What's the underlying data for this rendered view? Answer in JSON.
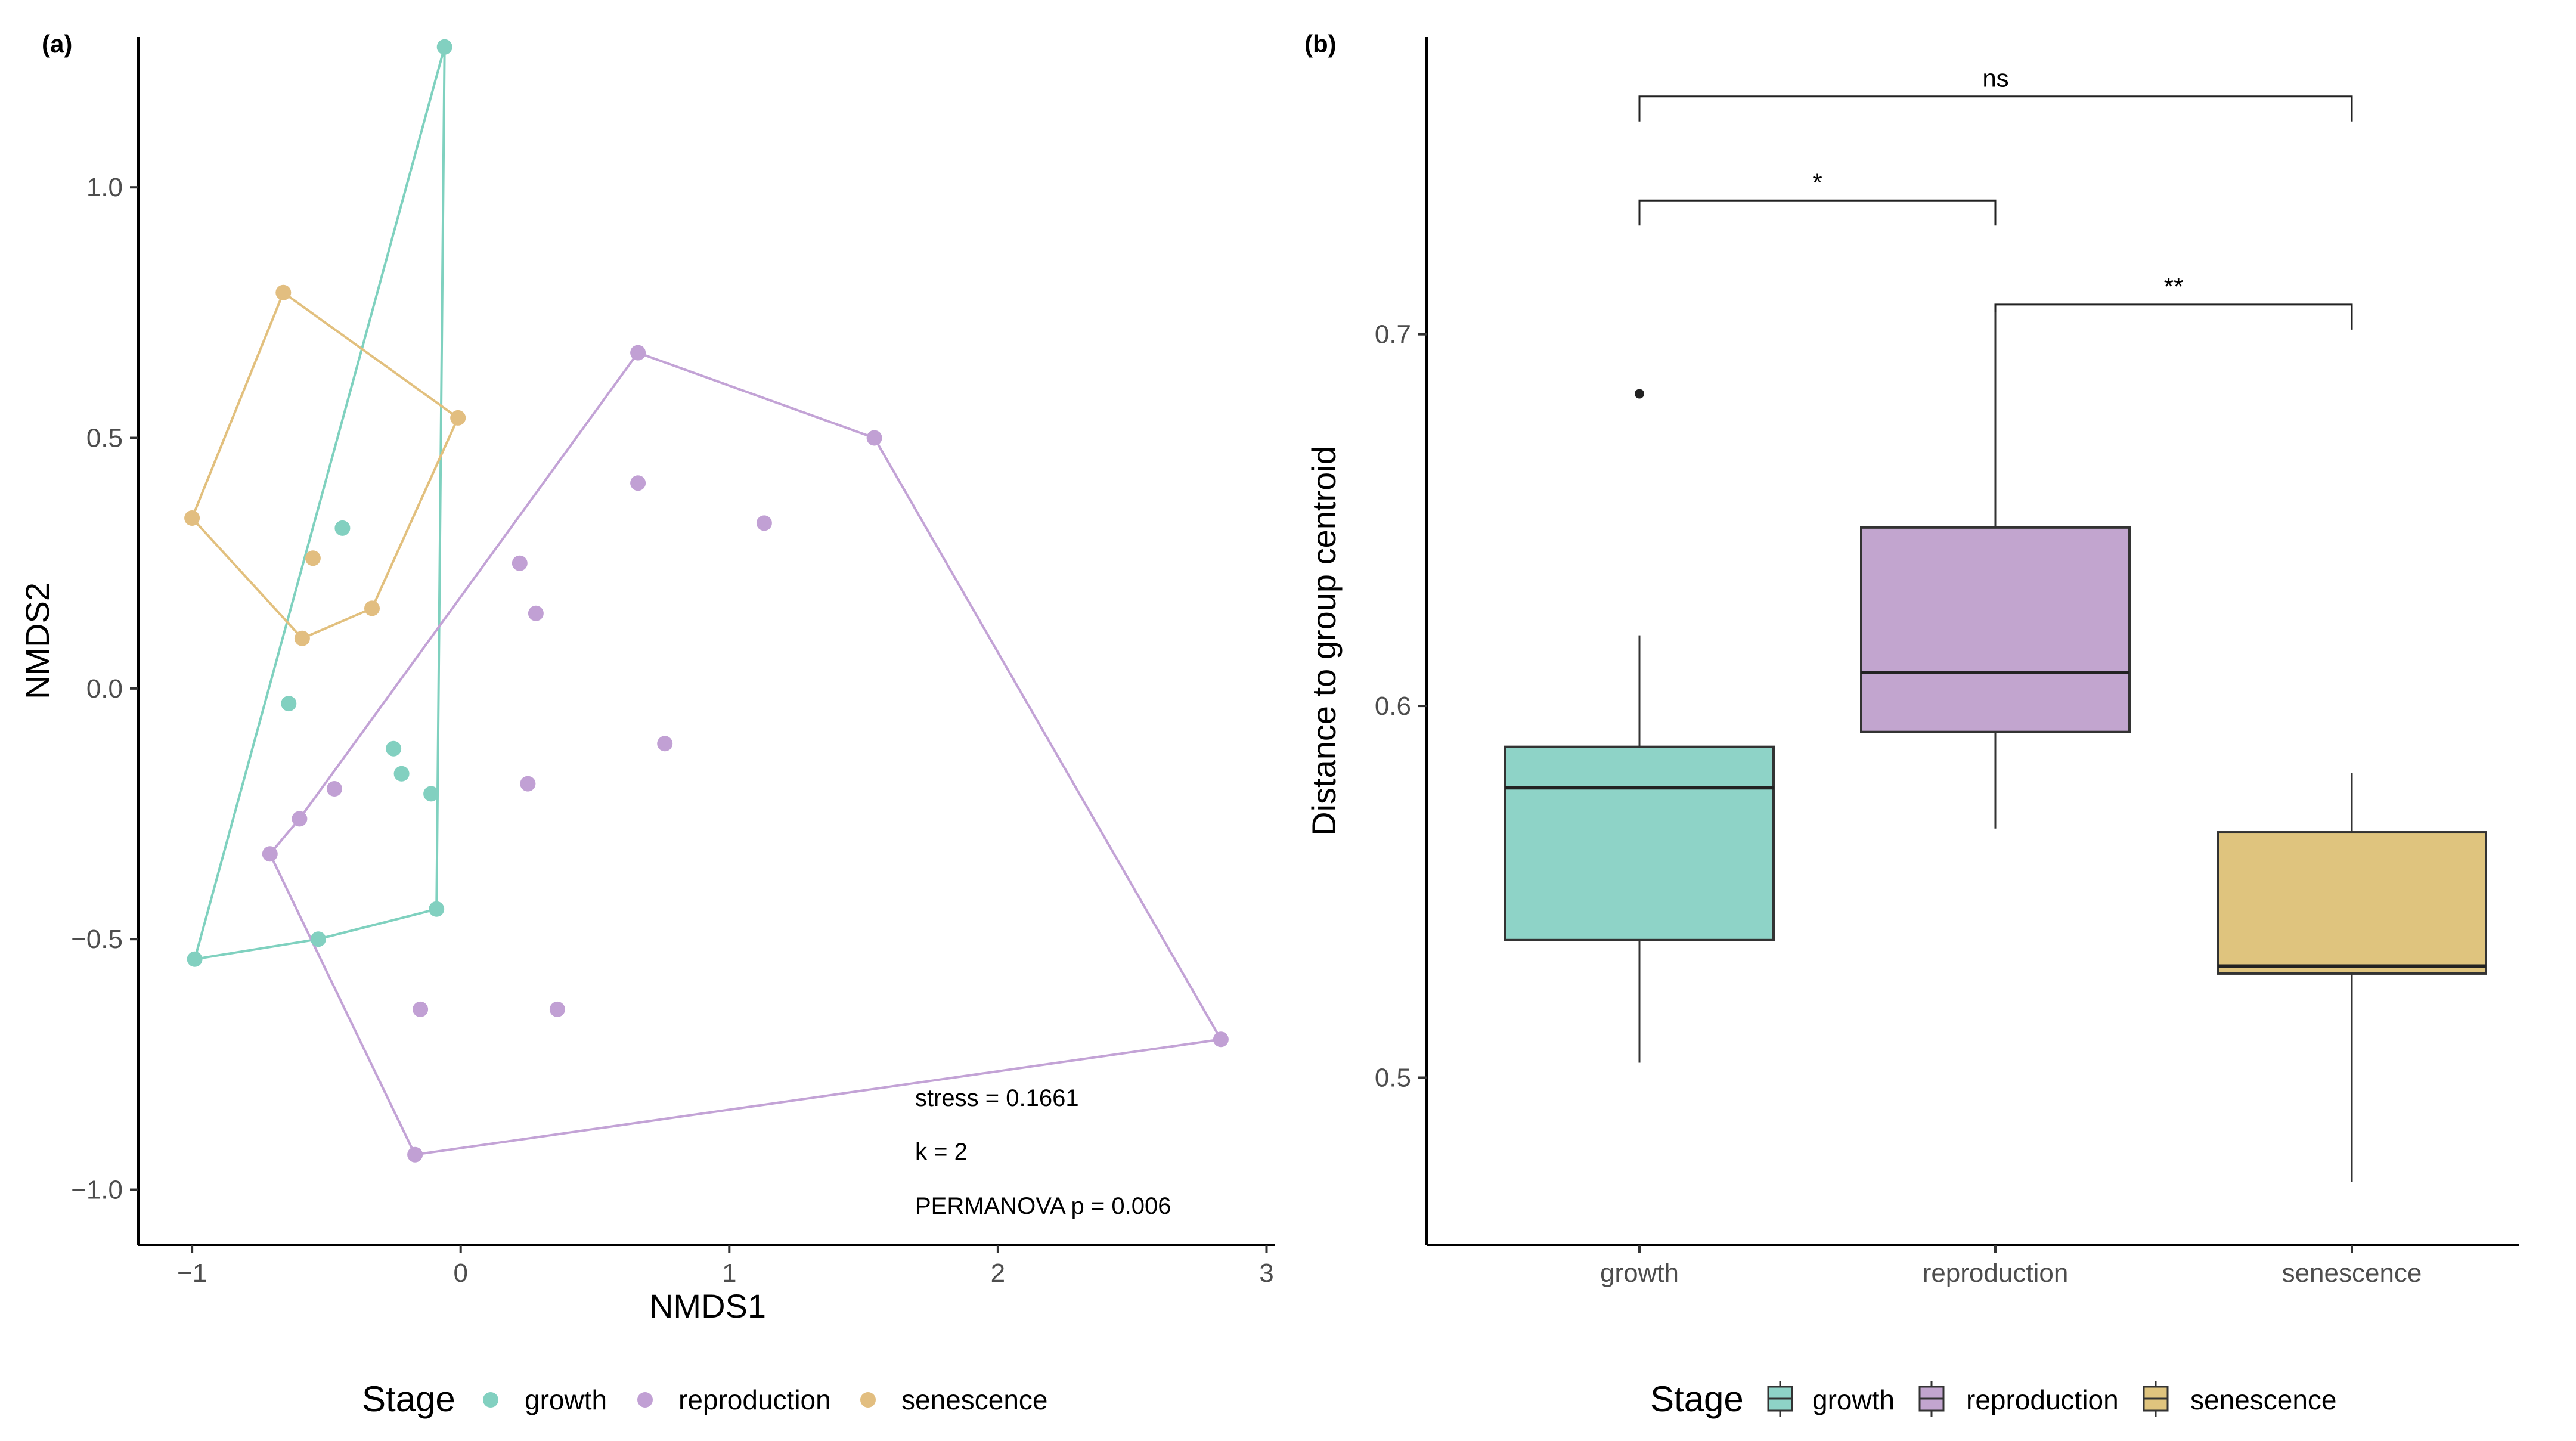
{
  "colors": {
    "growth": "#8dd3c7",
    "reproduction": "#bebada",
    "senescence": "#e5c494",
    "hull_growth": "#7fd1bf",
    "hull_reproduction": "#c3a3d6",
    "hull_senescence": "#e2c07e",
    "point_growth": "#82d0c0",
    "point_reproduction": "#c1a0d4",
    "point_senescence": "#e2be80",
    "box_growth": "#8ed3c7",
    "box_reproduction": "#c2a5cf",
    "box_senescence": "#dfc47e"
  },
  "chart_data": [
    {
      "type": "scatter",
      "panel_label": "(a)",
      "xlabel": "NMDS1",
      "ylabel": "NMDS2",
      "xlim": [
        -1.2,
        3.03
      ],
      "ylim": [
        -1.11,
        1.3
      ],
      "xticks": [
        -1,
        0,
        1,
        2,
        3
      ],
      "xtick_labels": [
        "−1",
        "0",
        "1",
        "2",
        "3"
      ],
      "yticks": [
        -1.0,
        -0.5,
        0.0,
        0.5,
        1.0
      ],
      "ytick_labels": [
        "−1.0",
        "−0.5",
        "0.0",
        "0.5",
        "1.0"
      ],
      "annotations": [
        "stress = 0.1661",
        "k = 2",
        "PERMANOVA p = 0.006"
      ],
      "legend": {
        "title": "Stage",
        "position": "bottom",
        "entries": [
          "growth",
          "reproduction",
          "senescence"
        ]
      },
      "series": [
        {
          "name": "growth",
          "points": [
            {
              "x": -0.06,
              "y": 1.28
            },
            {
              "x": -0.44,
              "y": 0.32
            },
            {
              "x": -0.64,
              "y": -0.03
            },
            {
              "x": -0.25,
              "y": -0.12
            },
            {
              "x": -0.22,
              "y": -0.17
            },
            {
              "x": -0.11,
              "y": -0.21
            },
            {
              "x": -0.09,
              "y": -0.44
            },
            {
              "x": -0.53,
              "y": -0.5
            },
            {
              "x": -0.99,
              "y": -0.54
            }
          ],
          "hull": [
            {
              "x": -0.06,
              "y": 1.28
            },
            {
              "x": -0.09,
              "y": -0.44
            },
            {
              "x": -0.53,
              "y": -0.5
            },
            {
              "x": -0.99,
              "y": -0.54
            }
          ]
        },
        {
          "name": "reproduction",
          "points": [
            {
              "x": 0.66,
              "y": 0.67
            },
            {
              "x": 1.54,
              "y": 0.5
            },
            {
              "x": 0.66,
              "y": 0.41
            },
            {
              "x": 1.13,
              "y": 0.33
            },
            {
              "x": 0.22,
              "y": 0.25
            },
            {
              "x": 0.28,
              "y": 0.15
            },
            {
              "x": 0.76,
              "y": -0.11
            },
            {
              "x": 0.25,
              "y": -0.19
            },
            {
              "x": -0.47,
              "y": -0.2
            },
            {
              "x": -0.6,
              "y": -0.26
            },
            {
              "x": -0.71,
              "y": -0.33
            },
            {
              "x": -0.15,
              "y": -0.64
            },
            {
              "x": 0.36,
              "y": -0.64
            },
            {
              "x": 2.83,
              "y": -0.7
            },
            {
              "x": -0.17,
              "y": -0.93
            }
          ],
          "hull": [
            {
              "x": 0.66,
              "y": 0.67
            },
            {
              "x": 1.54,
              "y": 0.5
            },
            {
              "x": 2.83,
              "y": -0.7
            },
            {
              "x": -0.17,
              "y": -0.93
            },
            {
              "x": -0.71,
              "y": -0.33
            },
            {
              "x": -0.6,
              "y": -0.26
            }
          ]
        },
        {
          "name": "senescence",
          "points": [
            {
              "x": -0.66,
              "y": 0.79
            },
            {
              "x": -0.01,
              "y": 0.54
            },
            {
              "x": -1.0,
              "y": 0.34
            },
            {
              "x": -0.55,
              "y": 0.26
            },
            {
              "x": -0.33,
              "y": 0.16
            },
            {
              "x": -0.59,
              "y": 0.1
            }
          ],
          "hull": [
            {
              "x": -0.66,
              "y": 0.79
            },
            {
              "x": -0.01,
              "y": 0.54
            },
            {
              "x": -0.33,
              "y": 0.16
            },
            {
              "x": -0.59,
              "y": 0.1
            },
            {
              "x": -1.0,
              "y": 0.34
            }
          ]
        }
      ]
    },
    {
      "type": "box",
      "panel_label": "(b)",
      "xlabel": "",
      "ylabel": "Distance to group centroid",
      "ylim": [
        0.455,
        0.78
      ],
      "yticks": [
        0.5,
        0.6,
        0.7
      ],
      "ytick_labels": [
        "0.5",
        "0.6",
        "0.7"
      ],
      "categories": [
        "growth",
        "reproduction",
        "senescence"
      ],
      "legend": {
        "title": "Stage",
        "position": "bottom",
        "entries": [
          "growth",
          "reproduction",
          "senescence"
        ]
      },
      "boxes": [
        {
          "name": "growth",
          "whisker_low": 0.504,
          "q1": 0.537,
          "median": 0.578,
          "q3": 0.589,
          "whisker_high": 0.619,
          "outliers": [
            0.684
          ]
        },
        {
          "name": "reproduction",
          "whisker_low": 0.567,
          "q1": 0.593,
          "median": 0.609,
          "q3": 0.648,
          "whisker_high": 0.706,
          "outliers": []
        },
        {
          "name": "senescence",
          "whisker_low": 0.472,
          "q1": 0.528,
          "median": 0.53,
          "q3": 0.566,
          "whisker_high": 0.582,
          "outliers": []
        }
      ],
      "comparisons": [
        {
          "groups": [
            "growth",
            "senescence"
          ],
          "label": "ns",
          "y": 0.764
        },
        {
          "groups": [
            "growth",
            "reproduction"
          ],
          "label": "*",
          "y": 0.736
        },
        {
          "groups": [
            "reproduction",
            "senescence"
          ],
          "label": "**",
          "y": 0.708
        }
      ]
    }
  ]
}
